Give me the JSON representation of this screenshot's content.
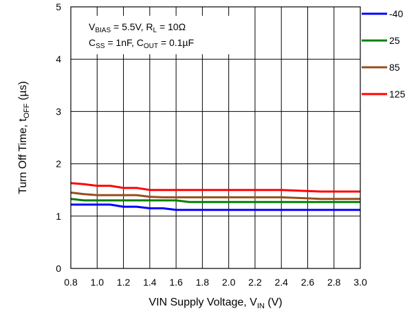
{
  "chart_data": {
    "type": "line",
    "xlabel": {
      "main": "VIN Supply Voltage, V",
      "sub": "IN",
      "tail": " (V)"
    },
    "ylabel": {
      "main": "Turn Off Time, t",
      "sub": "OFF",
      "tail": " (µs)"
    },
    "xlim": [
      0.8,
      3.0
    ],
    "ylim": [
      0,
      5
    ],
    "x_ticks": [
      "0.8",
      "1.0",
      "1.2",
      "1.4",
      "1.6",
      "1.8",
      "2.0",
      "2.2",
      "2.4",
      "2.6",
      "2.8",
      "3.0"
    ],
    "y_ticks": [
      "0",
      "1",
      "2",
      "3",
      "4",
      "5"
    ],
    "grid": true,
    "legend_position": "right",
    "annotation": {
      "line1": {
        "v": "V",
        "v_sub": "BIAS",
        "v_rest": " = 5.5V, R",
        "r_sub": "L",
        "r_rest": " = 10Ω"
      },
      "line2": {
        "c1": "C",
        "c1_sub": "SS",
        "c1_rest": " = 1nF, C",
        "c2_sub": "OUT",
        "c2_rest": " = 0.1µF"
      }
    },
    "x": [
      0.8,
      0.9,
      1.0,
      1.1,
      1.2,
      1.3,
      1.4,
      1.5,
      1.6,
      1.7,
      1.8,
      1.9,
      2.0,
      2.1,
      2.2,
      2.3,
      2.4,
      2.5,
      2.6,
      2.7,
      2.8,
      2.9,
      3.0
    ],
    "series": [
      {
        "name": "-40",
        "color": "#0000ff",
        "values": [
          1.22,
          1.22,
          1.22,
          1.22,
          1.18,
          1.18,
          1.15,
          1.15,
          1.12,
          1.12,
          1.12,
          1.12,
          1.12,
          1.12,
          1.12,
          1.12,
          1.12,
          1.12,
          1.12,
          1.12,
          1.12,
          1.12,
          1.12
        ]
      },
      {
        "name": "25",
        "color": "#008000",
        "values": [
          1.33,
          1.3,
          1.3,
          1.3,
          1.3,
          1.3,
          1.3,
          1.3,
          1.3,
          1.27,
          1.27,
          1.27,
          1.27,
          1.27,
          1.27,
          1.27,
          1.27,
          1.27,
          1.27,
          1.27,
          1.27,
          1.27,
          1.27
        ]
      },
      {
        "name": "85",
        "color": "#994d1a",
        "values": [
          1.45,
          1.42,
          1.4,
          1.4,
          1.4,
          1.4,
          1.37,
          1.36,
          1.36,
          1.36,
          1.36,
          1.36,
          1.36,
          1.36,
          1.36,
          1.36,
          1.36,
          1.35,
          1.34,
          1.33,
          1.33,
          1.33,
          1.33
        ]
      },
      {
        "name": "125",
        "color": "#ff0000",
        "values": [
          1.63,
          1.61,
          1.58,
          1.58,
          1.54,
          1.54,
          1.5,
          1.5,
          1.5,
          1.5,
          1.5,
          1.5,
          1.5,
          1.5,
          1.5,
          1.5,
          1.5,
          1.49,
          1.48,
          1.47,
          1.47,
          1.47,
          1.47
        ]
      }
    ]
  }
}
